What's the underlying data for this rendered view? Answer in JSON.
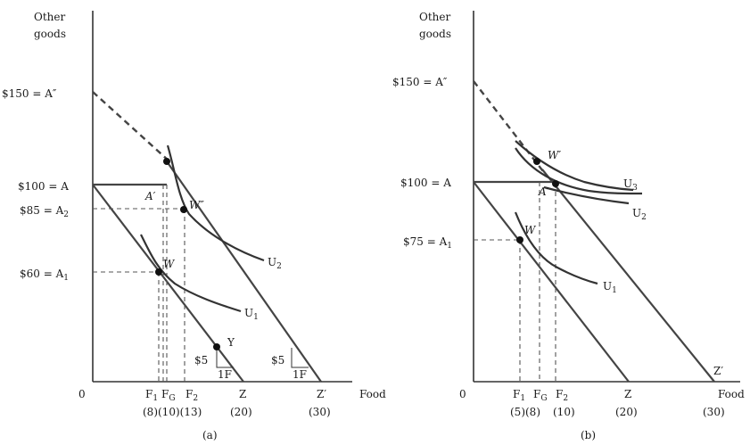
{
  "panel_a": {
    "y_axis_title_1": "Other",
    "y_axis_title_2": "goods",
    "x_axis_title": "Food",
    "origin": "0",
    "y_label_150": "$150 = A″",
    "y_label_100": "$100 = A",
    "y_label_85": "$85 = A",
    "y_label_85_sub": "2",
    "y_label_60": "$60 = A",
    "y_label_60_sub": "1",
    "x_F1": "F",
    "x_F1_sub": "1",
    "x_FG": "F",
    "x_FG_sub": "G",
    "x_F2": "F",
    "x_F2_sub": "2",
    "x_Z": "Z",
    "x_Zp": "Z′",
    "x_nums": "(8)(10)(13)",
    "x_num_20": "(20)",
    "x_num_30": "(30)",
    "pt_Ap": "A′",
    "pt_Wpp": "W″",
    "pt_W": "W",
    "pt_Y": "Y",
    "curve_U2": "U",
    "curve_U2_sub": "2",
    "curve_U1": "U",
    "curve_U1_sub": "1",
    "slope_price_1": "$5",
    "slope_qty_1": "1F",
    "slope_price_2": "$5",
    "slope_qty_2": "1F",
    "caption": "(a)"
  },
  "panel_b": {
    "y_axis_title_1": "Other",
    "y_axis_title_2": "goods",
    "x_axis_title": "Food",
    "origin": "0",
    "y_label_150": "$150 = A″",
    "y_label_100": "$100 = A",
    "y_label_75": "$75 = A",
    "y_label_75_sub": "1",
    "x_F1": "F",
    "x_F1_sub": "1",
    "x_FG": "F",
    "x_FG_sub": "G",
    "x_F2": "F",
    "x_F2_sub": "2",
    "x_Z": "Z",
    "x_Zp": "Z′",
    "x_nums": "(5)(8)",
    "x_num_10": "(10)",
    "x_num_20": "(20)",
    "x_num_30": "(30)",
    "pt_Wp": "W′",
    "pt_Ap": "A′",
    "pt_W": "W",
    "curve_U3": "U",
    "curve_U3_sub": "3",
    "curve_U2": "U",
    "curve_U2_sub": "2",
    "curve_U1": "U",
    "curve_U1_sub": "1",
    "caption": "(b)"
  }
}
